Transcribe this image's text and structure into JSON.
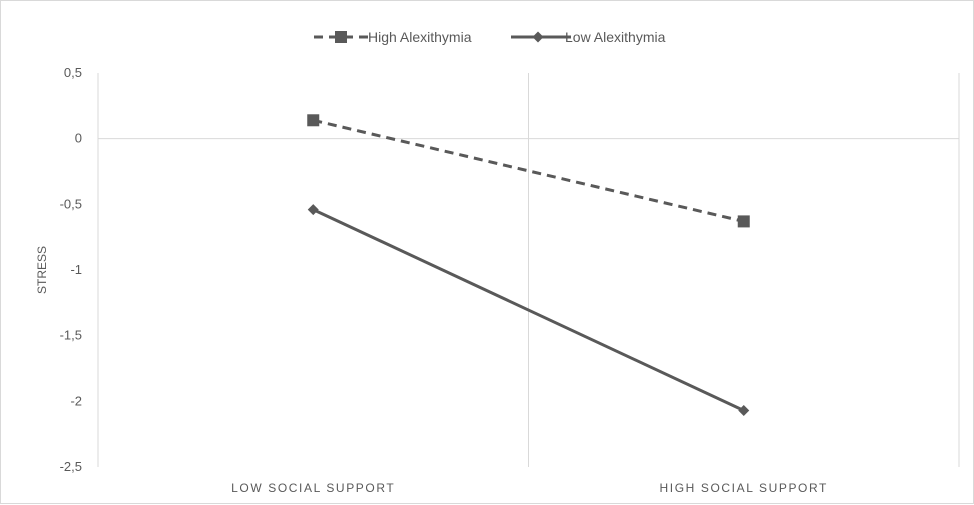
{
  "chart_data": {
    "type": "line",
    "categories": [
      "LOW SOCIAL SUPPORT",
      "HIGH SOCIAL SUPPORT"
    ],
    "series": [
      {
        "name": "High Alexithymia",
        "values": [
          0.14,
          -0.63
        ],
        "style": "dashed",
        "marker": "square"
      },
      {
        "name": "Low Alexithymia",
        "values": [
          -0.54,
          -2.07
        ],
        "style": "solid",
        "marker": "diamond"
      }
    ],
    "ylabel": "STRESS",
    "xlabel": "",
    "ylim": [
      -2.5,
      0.5
    ],
    "yticks": [
      "0,5",
      "0",
      "-0,5",
      "-1",
      "-1,5",
      "-2",
      "-2,5"
    ],
    "ytick_values": [
      0.5,
      0,
      -0.5,
      -1,
      -1.5,
      -2,
      -2.5
    ],
    "grid": true,
    "legend": "top-center",
    "colors": {
      "line": "#595959",
      "grid": "#d9d9d9",
      "text": "#595959"
    }
  }
}
